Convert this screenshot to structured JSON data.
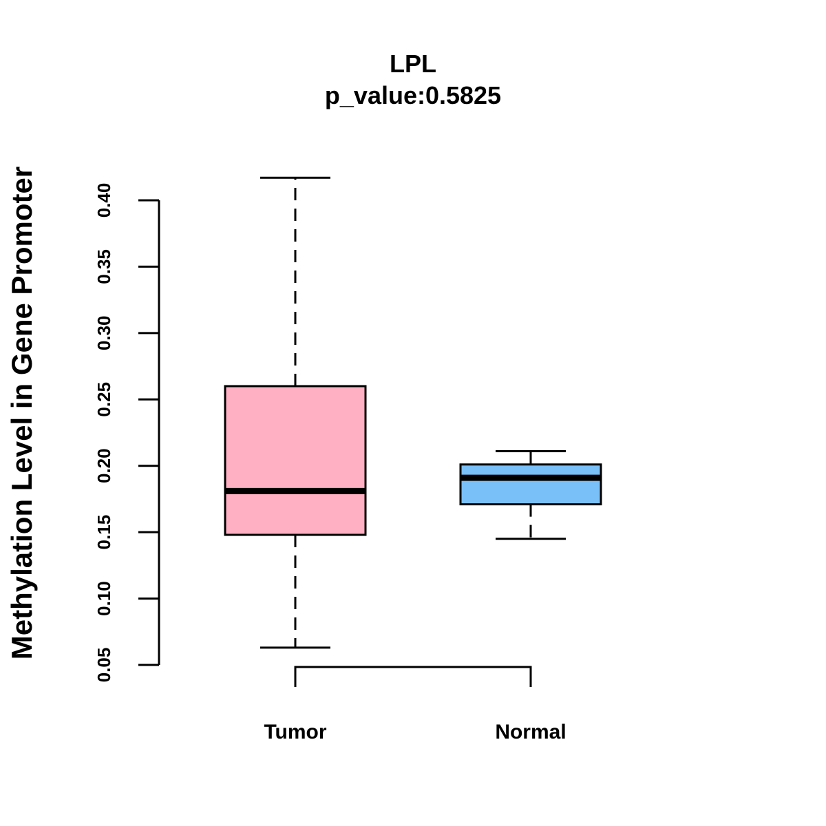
{
  "chart_data": {
    "type": "boxplot",
    "title": "LPL",
    "subtitle": "p_value:0.5825",
    "xlabel": "",
    "ylabel": "Methylation Level in Gene Promoter",
    "ylim": [
      0.05,
      0.4
    ],
    "yticks": [
      "0.05",
      "0.10",
      "0.15",
      "0.20",
      "0.25",
      "0.30",
      "0.35",
      "0.40"
    ],
    "categories": [
      "Tumor",
      "Normal"
    ],
    "boxes": [
      {
        "name": "Tumor",
        "min": 0.063,
        "q1": 0.148,
        "median": 0.181,
        "q3": 0.26,
        "max": 0.417,
        "color": "#FFB0C3"
      },
      {
        "name": "Normal",
        "min": 0.145,
        "q1": 0.171,
        "median": 0.191,
        "q3": 0.201,
        "max": 0.211,
        "color": "#79BFF8"
      }
    ],
    "comparison_bracket": [
      "Tumor",
      "Normal"
    ],
    "grid": false
  }
}
